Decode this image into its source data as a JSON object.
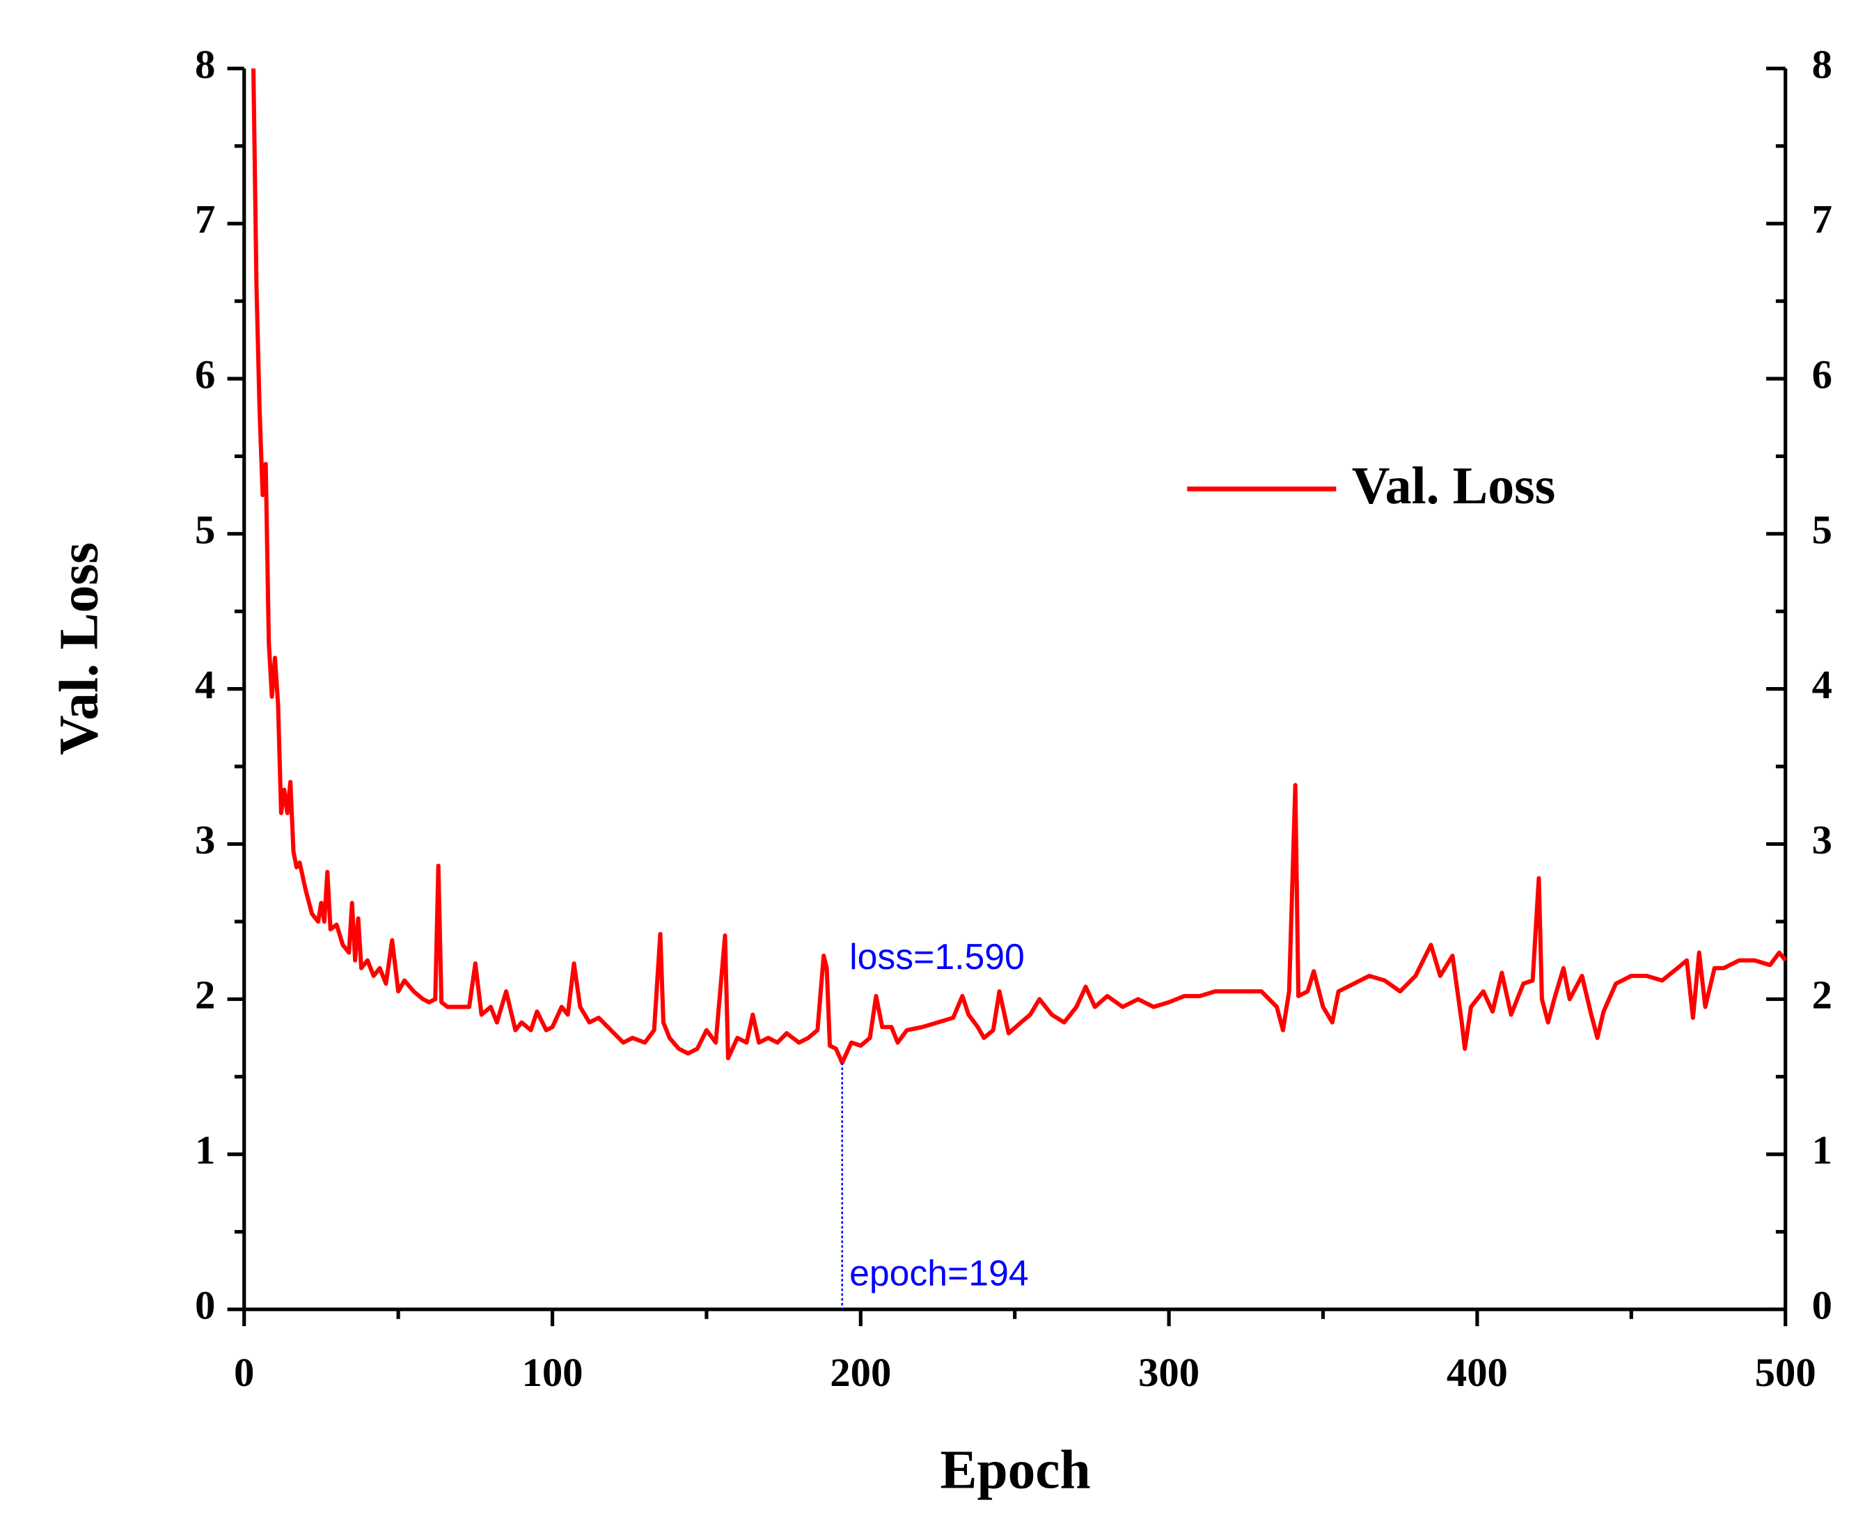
{
  "chart_data": {
    "type": "line",
    "xlabel": "Epoch",
    "ylabel": "Val. Loss",
    "xlim": [
      0,
      500
    ],
    "xticks": [
      0,
      100,
      200,
      300,
      400,
      500
    ],
    "ylim": [
      0,
      8
    ],
    "yticks": [
      0,
      1,
      2,
      3,
      4,
      5,
      6,
      7,
      8
    ],
    "legend": "upper right",
    "x": [
      3,
      4,
      5,
      6,
      7,
      8,
      9,
      10,
      11,
      12,
      13,
      14,
      15,
      16,
      17,
      18,
      20,
      22,
      24,
      25,
      26,
      27,
      28,
      30,
      32,
      34,
      35,
      36,
      37,
      38,
      40,
      42,
      44,
      46,
      48,
      50,
      52,
      55,
      58,
      60,
      62,
      63,
      64,
      66,
      70,
      73,
      75,
      77,
      80,
      82,
      85,
      88,
      90,
      93,
      95,
      98,
      100,
      103,
      105,
      107,
      109,
      112,
      115,
      118,
      120,
      123,
      126,
      130,
      133,
      135,
      136,
      138,
      141,
      144,
      147,
      150,
      153,
      156,
      157,
      160,
      163,
      165,
      167,
      170,
      173,
      176,
      180,
      183,
      186,
      188,
      189,
      190,
      192,
      194,
      197,
      200,
      203,
      205,
      207,
      210,
      212,
      215,
      220,
      225,
      230,
      233,
      235,
      238,
      240,
      243,
      245,
      248,
      252,
      255,
      258,
      262,
      266,
      270,
      273,
      276,
      280,
      285,
      290,
      295,
      300,
      305,
      310,
      315,
      320,
      325,
      330,
      335,
      337,
      339,
      341,
      342,
      345,
      347,
      350,
      353,
      355,
      360,
      365,
      370,
      375,
      380,
      385,
      388,
      392,
      395,
      396,
      398,
      402,
      405,
      408,
      411,
      415,
      418,
      420,
      421,
      423,
      425,
      428,
      430,
      434,
      437,
      439,
      441,
      445,
      450,
      455,
      460,
      465,
      468,
      470,
      472,
      474,
      477,
      480,
      485,
      490,
      495,
      498,
      500
    ],
    "series": [
      {
        "name": "Val. Loss",
        "color": "#ff0000",
        "values": [
          8,
          6.6,
          5.8,
          5.25,
          5.45,
          4.3,
          3.95,
          4.2,
          3.9,
          3.2,
          3.35,
          3.2,
          3.4,
          2.95,
          2.85,
          2.88,
          2.7,
          2.55,
          2.5,
          2.62,
          2.5,
          2.82,
          2.45,
          2.48,
          2.35,
          2.3,
          2.62,
          2.25,
          2.52,
          2.2,
          2.25,
          2.15,
          2.2,
          2.1,
          2.38,
          2.05,
          2.12,
          2.05,
          2.0,
          1.98,
          2.0,
          2.86,
          1.98,
          1.95,
          1.95,
          1.95,
          2.23,
          1.9,
          1.95,
          1.85,
          2.05,
          1.8,
          1.85,
          1.8,
          1.92,
          1.8,
          1.82,
          1.95,
          1.9,
          2.23,
          1.95,
          1.85,
          1.88,
          1.82,
          1.78,
          1.72,
          1.75,
          1.72,
          1.8,
          2.42,
          1.85,
          1.75,
          1.68,
          1.65,
          1.68,
          1.8,
          1.72,
          2.41,
          1.62,
          1.75,
          1.72,
          1.9,
          1.72,
          1.75,
          1.72,
          1.78,
          1.72,
          1.75,
          1.8,
          2.28,
          2.2,
          1.7,
          1.68,
          1.59,
          1.72,
          1.7,
          1.75,
          2.02,
          1.82,
          1.82,
          1.72,
          1.8,
          1.82,
          1.85,
          1.88,
          2.02,
          1.9,
          1.82,
          1.75,
          1.8,
          2.05,
          1.78,
          1.85,
          1.9,
          2.0,
          1.9,
          1.85,
          1.95,
          2.08,
          1.95,
          2.02,
          1.95,
          2.0,
          1.95,
          1.98,
          2.02,
          2.02,
          2.05,
          2.05,
          2.05,
          2.05,
          1.95,
          1.8,
          2.05,
          3.38,
          2.02,
          2.05,
          2.18,
          1.95,
          1.85,
          2.05,
          2.1,
          2.15,
          2.12,
          2.05,
          2.15,
          2.35,
          2.15,
          2.28,
          1.85,
          1.68,
          1.95,
          2.05,
          1.92,
          2.17,
          1.9,
          2.1,
          2.12,
          2.78,
          2.0,
          1.85,
          2.0,
          2.2,
          2.0,
          2.15,
          1.9,
          1.75,
          1.92,
          2.1,
          2.15,
          2.15,
          2.12,
          2.2,
          2.25,
          1.88,
          2.3,
          1.95,
          2.2,
          2.2,
          2.25,
          2.25,
          2.22,
          2.3,
          2.25
        ]
      }
    ],
    "annotations": [
      {
        "text": "loss=1.590",
        "x": 194,
        "y": 1.59
      },
      {
        "text": "epoch=194",
        "x": 194,
        "y": 0
      }
    ]
  }
}
